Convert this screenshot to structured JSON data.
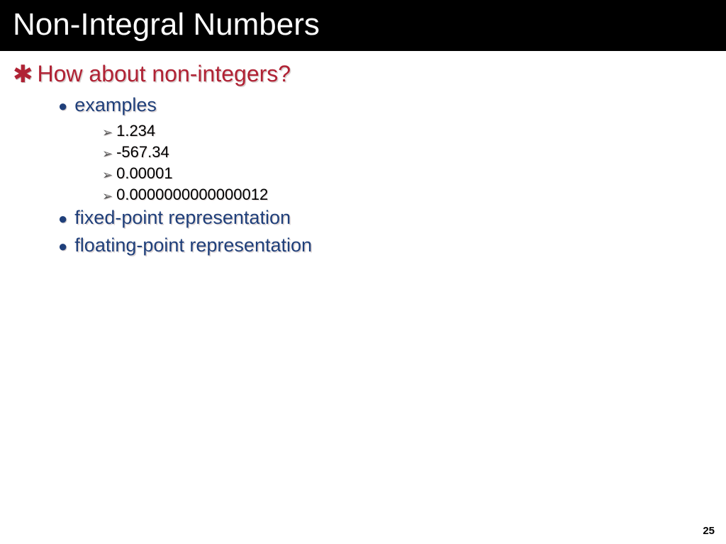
{
  "colors": {
    "title_bg": "#000000",
    "title_fg": "#ffffff",
    "lvl1_bullet": "#b02234",
    "lvl1_text": "#b02234",
    "lvl2_bullet": "#1f3f7a",
    "lvl2_text": "#1f3f7a",
    "lvl3_bullet": "#555555",
    "lvl3_text": "#000000",
    "page_bg": "#ffffff"
  },
  "title": "Non-Integral Numbers",
  "page_number": "25",
  "bullets": {
    "lvl1_symbol": "✱",
    "lvl2_symbol": "●",
    "lvl3_symbol": "➢"
  },
  "outline": {
    "heading": "How about non-integers?",
    "items": [
      {
        "label": "examples",
        "sub": [
          "1.234",
          "-567.34",
          "0.00001",
          "0.0000000000000012"
        ]
      },
      {
        "label": "fixed-point representation",
        "sub": []
      },
      {
        "label": "floating-point representation",
        "sub": []
      }
    ]
  }
}
